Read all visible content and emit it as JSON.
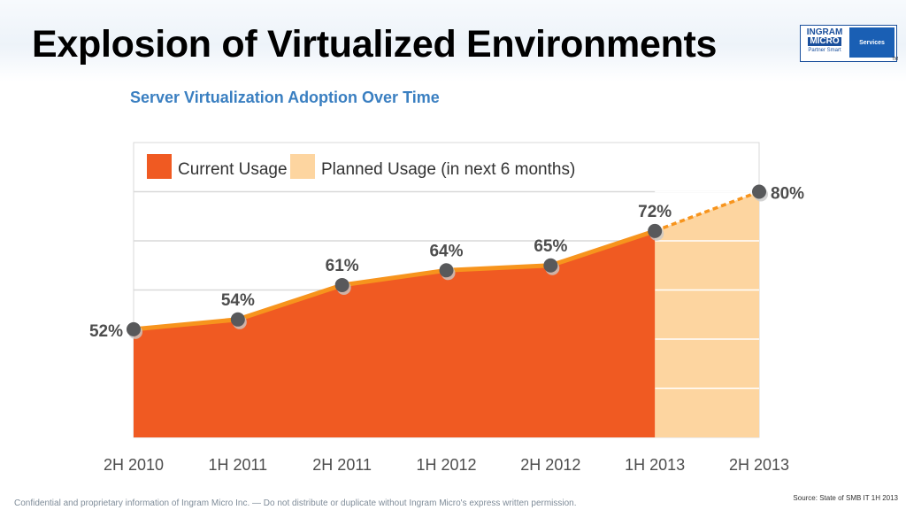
{
  "slide": {
    "title": "Explosion of Virtualized Environments",
    "source": "Source:  State of SMB IT 1H 2013",
    "footer": "Confidential and proprietary information of Ingram Micro Inc. — Do not distribute or duplicate without Ingram Micro's express written permission."
  },
  "logo": {
    "line1": "INGRAM",
    "line2": "MICRO",
    "tagline": "Partner Smart",
    "services": "Services",
    "trademark": "TM"
  },
  "colors": {
    "current": "#f05a22",
    "planned": "#fdd5a0",
    "line": "#f7941d",
    "dot": "#58595b",
    "title_blue": "#3a7fc1",
    "grid": "#d9d9d9"
  },
  "chart_data": {
    "type": "area",
    "title": "Server Virtualization Adoption Over Time",
    "categories": [
      "2H 2010",
      "1H 2011",
      "2H 2011",
      "1H 2012",
      "2H 2012",
      "1H 2013",
      "2H 2013"
    ],
    "series": [
      {
        "name": "Current Usage",
        "values": [
          52,
          54,
          61,
          64,
          65,
          72,
          null
        ]
      },
      {
        "name": "Planned Usage (in next 6 months)",
        "values": [
          null,
          null,
          null,
          null,
          null,
          72,
          80
        ]
      }
    ],
    "data_labels": [
      "52%",
      "54%",
      "61%",
      "64%",
      "65%",
      "72%",
      "80%"
    ],
    "ylim": [
      30,
      90
    ],
    "grid": true,
    "legend_position": "top-left"
  }
}
